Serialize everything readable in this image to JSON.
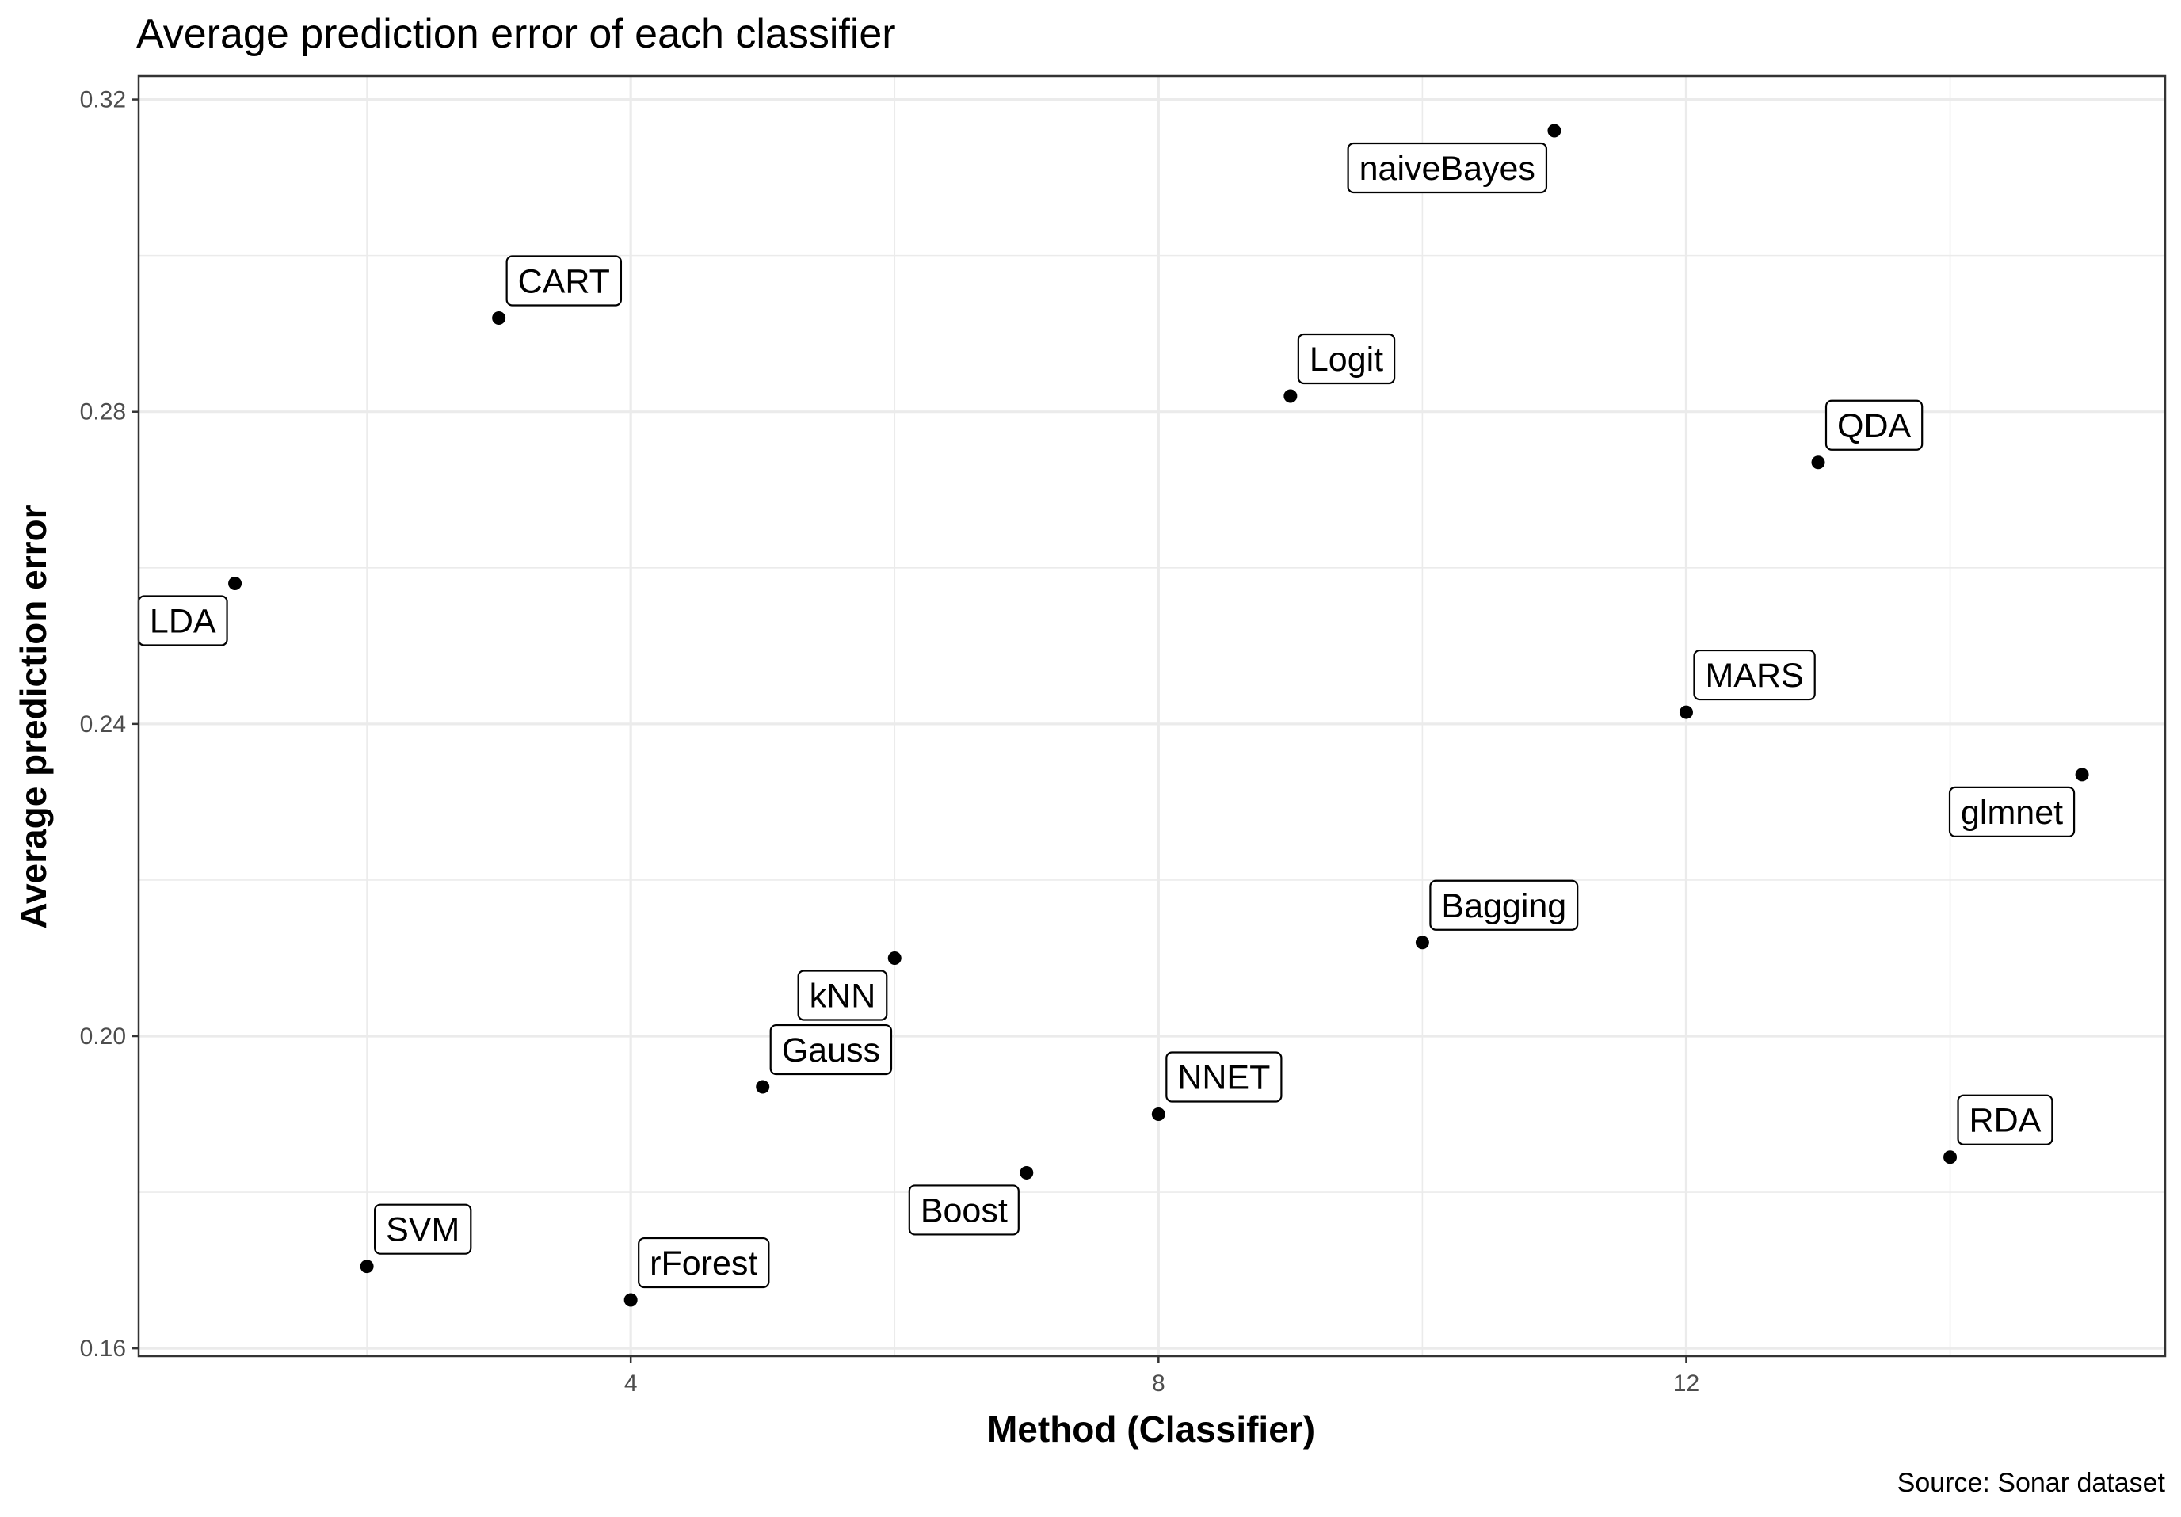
{
  "chart_data": {
    "type": "scatter",
    "title": "Average prediction error of each classifier",
    "xlabel": "Method (Classifier)",
    "ylabel": "Average prediction error",
    "caption": "Source: Sonar dataset",
    "xlim": [
      0.27,
      15.63
    ],
    "ylim": [
      0.159,
      0.323
    ],
    "x_ticks": [
      4,
      8,
      12
    ],
    "x_tick_labels": [
      "4",
      "8",
      "12"
    ],
    "y_ticks": [
      0.16,
      0.2,
      0.24,
      0.28,
      0.32
    ],
    "y_tick_labels": [
      "0.16",
      "0.20",
      "0.24",
      "0.28",
      "0.32"
    ],
    "grid": true,
    "point_color": "#000000",
    "points": [
      {
        "label": "LDA",
        "x": 1,
        "y": 0.258
      },
      {
        "label": "SVM",
        "x": 2,
        "y": 0.1705
      },
      {
        "label": "CART",
        "x": 3,
        "y": 0.292
      },
      {
        "label": "rForest",
        "x": 4,
        "y": 0.1662
      },
      {
        "label": "Gauss",
        "x": 5,
        "y": 0.1935
      },
      {
        "label": "kNN",
        "x": 6,
        "y": 0.21
      },
      {
        "label": "Boost",
        "x": 7,
        "y": 0.1825
      },
      {
        "label": "NNET",
        "x": 8,
        "y": 0.19
      },
      {
        "label": "Logit",
        "x": 9,
        "y": 0.282
      },
      {
        "label": "Bagging",
        "x": 10,
        "y": 0.212
      },
      {
        "label": "naiveBayes",
        "x": 11,
        "y": 0.316
      },
      {
        "label": "MARS",
        "x": 12,
        "y": 0.2415
      },
      {
        "label": "QDA",
        "x": 13,
        "y": 0.2735
      },
      {
        "label": "RDA",
        "x": 14,
        "y": 0.1845
      },
      {
        "label": "glmnet",
        "x": 15,
        "y": 0.2335
      }
    ]
  }
}
